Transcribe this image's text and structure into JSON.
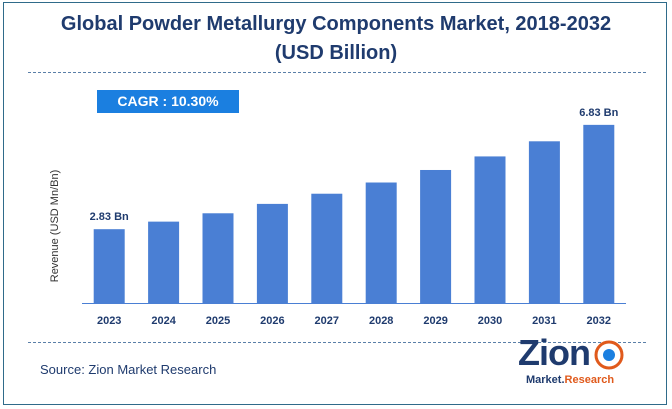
{
  "chart_data": {
    "type": "bar",
    "title_line1": "Global Powder Metallurgy Components Market, 2018-2032",
    "title_line2": "(USD Billion)",
    "ylabel": "Revenue (USD Mn/Bn)",
    "categories": [
      "2023",
      "2024",
      "2025",
      "2026",
      "2027",
      "2028",
      "2029",
      "2030",
      "2031",
      "2032"
    ],
    "series": [
      {
        "values": [
          2.83,
          3.12,
          3.44,
          3.8,
          4.19,
          4.62,
          5.1,
          5.62,
          6.2,
          6.83
        ]
      }
    ],
    "data_labels": [
      {
        "category": "2023",
        "text": "2.83 Bn"
      },
      {
        "category": "2032",
        "text": "6.83 Bn"
      }
    ],
    "ylim": [
      0,
      7.4
    ],
    "bar_color": "#4a7fd4",
    "grid": false,
    "legend": "none"
  },
  "cagr_label": "CAGR :  10.30%",
  "source": "Source: Zion Market Research",
  "logo": {
    "word": "Zion",
    "sub_main": "Market.",
    "sub_accent": "Research"
  },
  "colors": {
    "title": "#1f3b6e",
    "cagr_bg": "#1b7fe0",
    "axis": "#4a7fd4"
  }
}
